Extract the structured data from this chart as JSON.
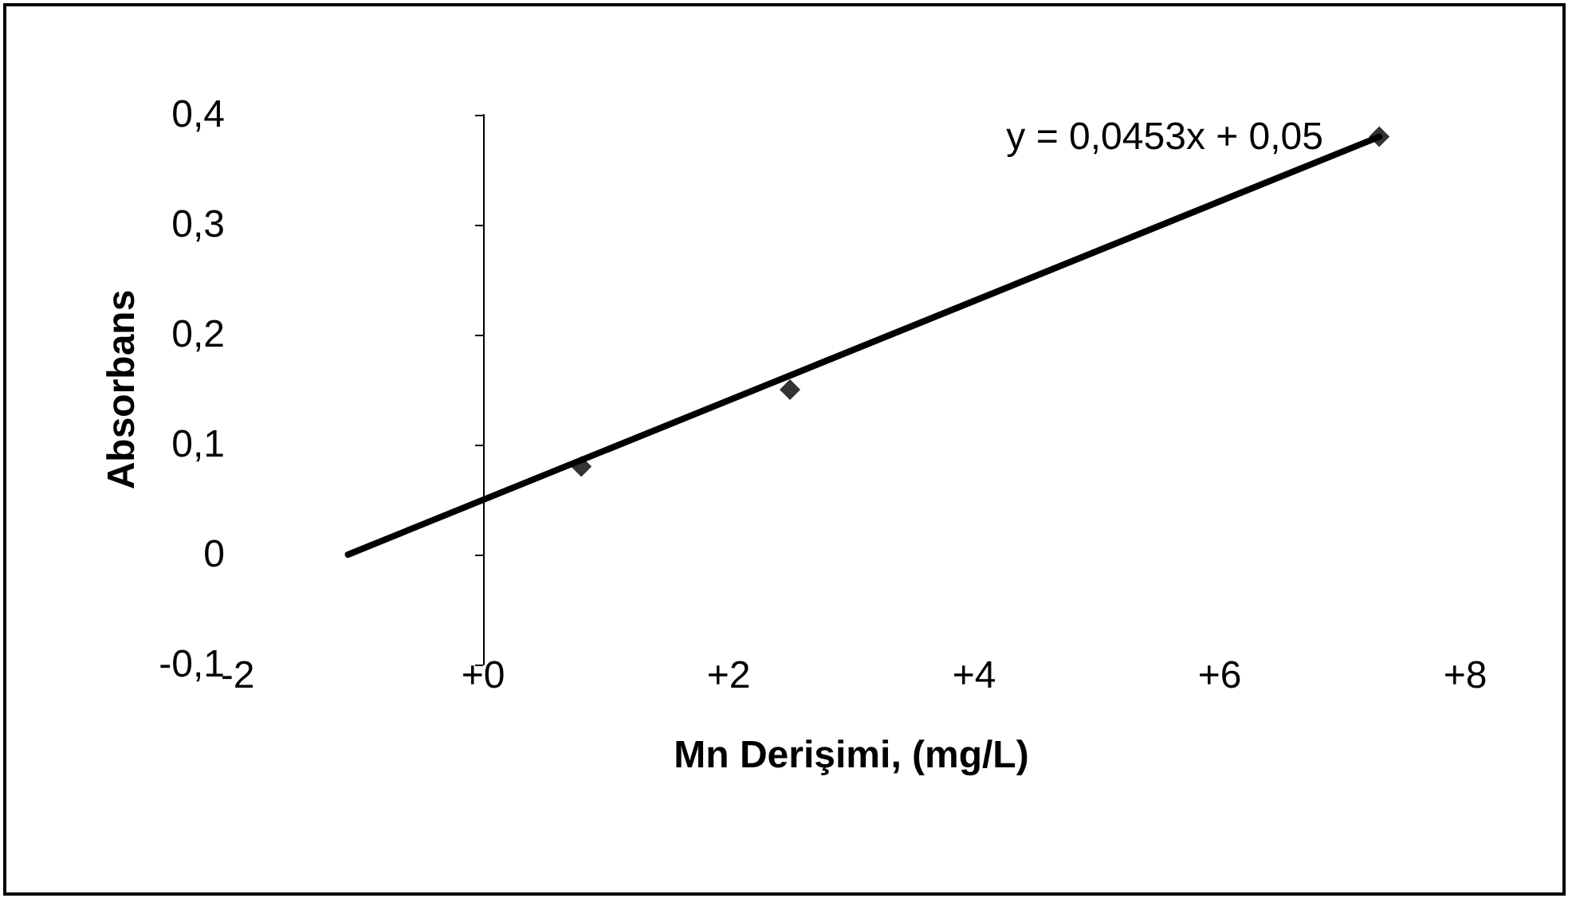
{
  "chart_data": {
    "type": "scatter",
    "xlabel": "Mn Derişimi, (mg/L)",
    "ylabel": "Absorbans",
    "annotations": [
      "y = 0,0453x + 0,05"
    ],
    "series": [
      {
        "color": "#000000",
        "x": [
          0.8,
          2.5,
          7.3
        ],
        "values": [
          0.08,
          0.15,
          0.38
        ]
      },
      {
        "type": "line",
        "color": "#000000",
        "x": [
          -1.1,
          7.3
        ],
        "values": [
          0,
          0.38
        ],
        "marker": "none",
        "line_style": "solid"
      }
    ],
    "xlim": [
      -2,
      8
    ],
    "xticks": [
      {
        "value": -2,
        "label": "-2"
      },
      {
        "value": 0,
        "label": "+0"
      },
      {
        "value": 2,
        "label": "+2"
      },
      {
        "value": 4,
        "label": "+4"
      },
      {
        "value": 6,
        "label": "+6"
      },
      {
        "value": 8,
        "label": "+8"
      }
    ],
    "ylim": [
      -0.1,
      0.4
    ],
    "yticks": [
      {
        "value": -0.1,
        "label": "-0,1"
      },
      0,
      {
        "value": 0.1,
        "label": "0,1"
      },
      {
        "value": 0.2,
        "label": "0,2"
      },
      {
        "value": 0.3,
        "label": "0,3"
      },
      {
        "value": 0.4,
        "label": "0,4"
      }
    ],
    "marker": "diamond"
  }
}
